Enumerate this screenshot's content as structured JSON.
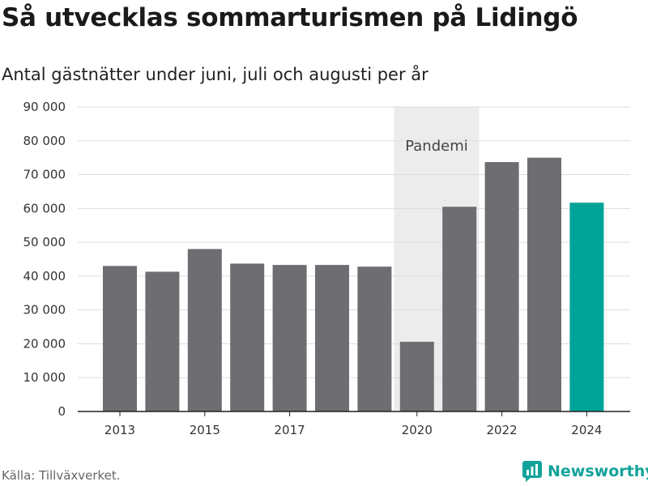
{
  "chart_data": {
    "type": "bar",
    "title": "Så utvecklas sommarturismen på Lidingö",
    "subtitle": "Antal gästnätter under juni, juli och augusti per år",
    "categories": [
      2013,
      2014,
      2015,
      2016,
      2017,
      2018,
      2019,
      2020,
      2021,
      2022,
      2023,
      2024
    ],
    "values": [
      43000,
      41300,
      48000,
      43700,
      43300,
      43300,
      42800,
      20600,
      60500,
      73700,
      75000,
      61700
    ],
    "x_tick_labels": [
      "2013",
      "2015",
      "2017",
      "2020",
      "2022",
      "2024"
    ],
    "y_tick_labels": [
      "0",
      "10 000",
      "20 000",
      "30 000",
      "40 000",
      "50 000",
      "60 000",
      "70 000",
      "80 000",
      "90 000"
    ],
    "ylim": [
      0,
      90000
    ],
    "grid": true,
    "highlight_category": 2024,
    "annotation": {
      "label": "Pandemi",
      "from": 2020,
      "to": 2021
    },
    "colors": {
      "bar": "#6e6d72",
      "highlight": "#00a398",
      "band": "#ececec",
      "grid": "#dddddd"
    }
  },
  "footer": {
    "source": "Källa: Tillväxverket.",
    "brand": "Newsworthy"
  }
}
